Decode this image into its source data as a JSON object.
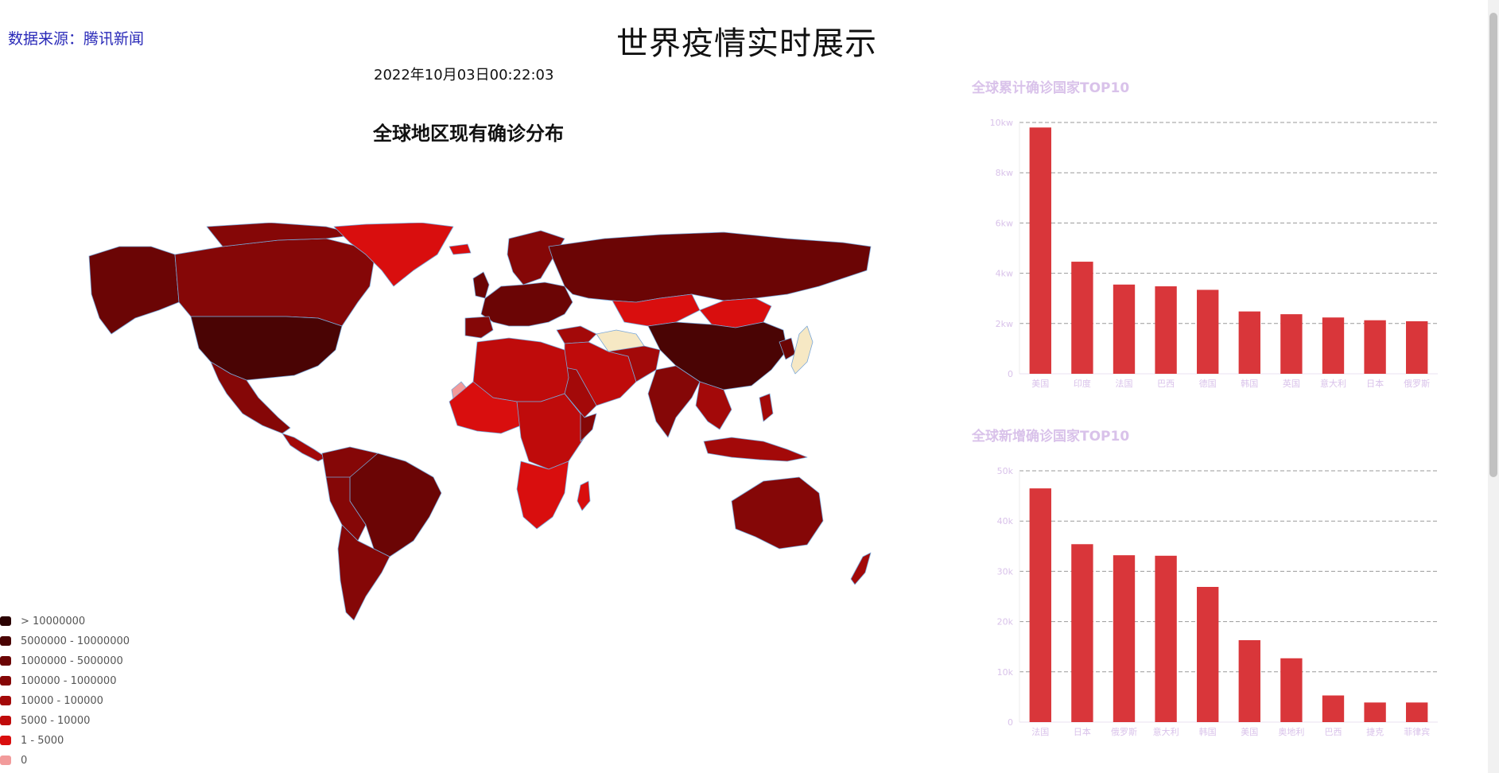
{
  "header": {
    "source": "数据来源：腾讯新闻",
    "title": "世界疫情实时展示",
    "datetime": "2022年10月03日00:22:03"
  },
  "map": {
    "title": "全球地区现有确诊分布",
    "legend": [
      {
        "label": "> 10000000",
        "color": "#2b0303"
      },
      {
        "label": "5000000 - 10000000",
        "color": "#4a0404"
      },
      {
        "label": "1000000 - 5000000",
        "color": "#6b0505"
      },
      {
        "label": "100000 - 1000000",
        "color": "#850707"
      },
      {
        "label": "10000 - 100000",
        "color": "#a30909"
      },
      {
        "label": "5000 - 10000",
        "color": "#bf0b0b"
      },
      {
        "label": "1 - 5000",
        "color": "#d90e0e"
      },
      {
        "label": "0",
        "color": "#f29b9b"
      }
    ]
  },
  "chart_data": [
    {
      "type": "bar",
      "title": "全球累计确诊国家TOP10",
      "categories": [
        "美国",
        "印度",
        "法国",
        "巴西",
        "德国",
        "韩国",
        "英国",
        "意大利",
        "日本",
        "俄罗斯"
      ],
      "values": [
        9800,
        4460,
        3550,
        3480,
        3340,
        2480,
        2370,
        2240,
        2130,
        2090
      ],
      "yticks": [
        "0",
        "2kw",
        "4kw",
        "6kw",
        "8kw",
        "10kw"
      ],
      "ylim": [
        0,
        10000
      ],
      "grid": true,
      "bar_color": "#d9363a"
    },
    {
      "type": "bar",
      "title": "全球新增确诊国家TOP10",
      "categories": [
        "法国",
        "日本",
        "俄罗斯",
        "意大利",
        "韩国",
        "美国",
        "奥地利",
        "巴西",
        "捷克",
        "菲律宾"
      ],
      "values": [
        46500,
        35400,
        33200,
        33100,
        26900,
        16300,
        12700,
        5300,
        3900,
        3900
      ],
      "yticks": [
        "0",
        "10k",
        "20k",
        "30k",
        "40k",
        "50k"
      ],
      "ylim": [
        0,
        50000
      ],
      "grid": true,
      "bar_color": "#d9363a"
    }
  ]
}
